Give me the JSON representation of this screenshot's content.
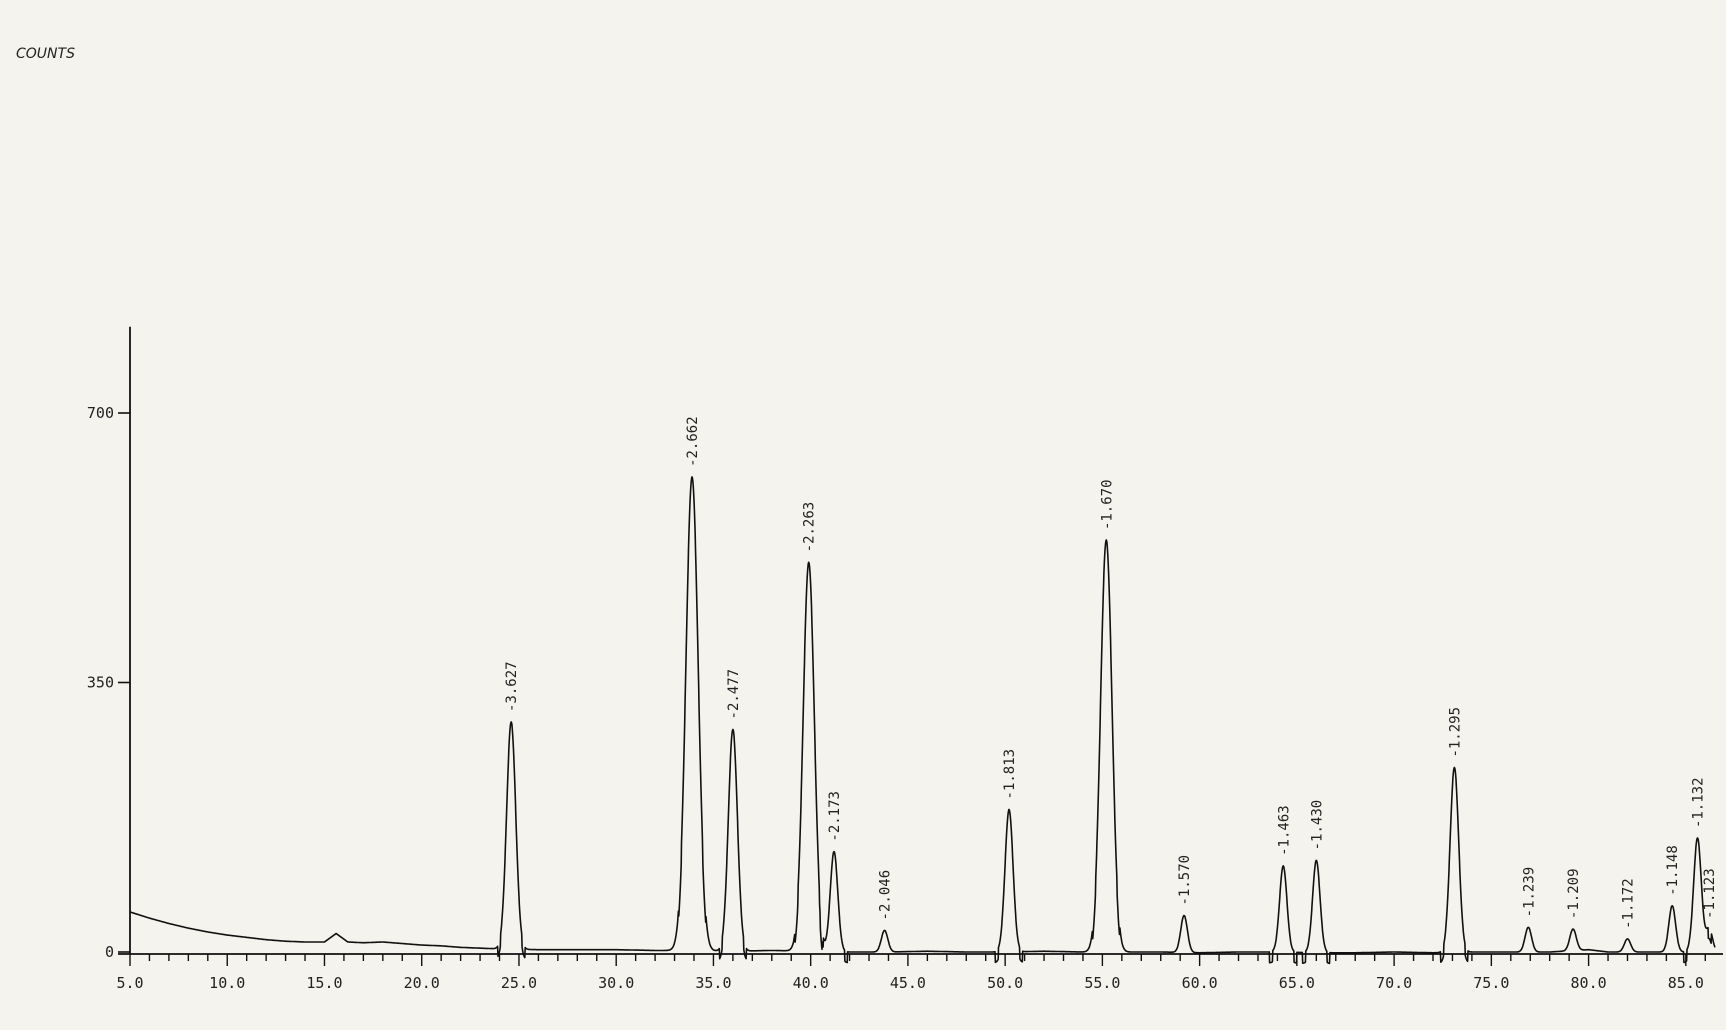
{
  "chart_data": {
    "type": "line",
    "ylabel": "COUNTS",
    "y_ticks": [
      {
        "value": 0,
        "label": "0"
      },
      {
        "value": 350,
        "label": "350"
      },
      {
        "value": 700,
        "label": "700"
      }
    ],
    "x_ticks": [
      {
        "value": 5,
        "label": "5.0"
      },
      {
        "value": 10,
        "label": "10.0"
      },
      {
        "value": 15,
        "label": "15.0"
      },
      {
        "value": 20,
        "label": "20.0"
      },
      {
        "value": 25,
        "label": "25.0"
      },
      {
        "value": 30,
        "label": "30.0"
      },
      {
        "value": 35,
        "label": "35.0"
      },
      {
        "value": 40,
        "label": "40.0"
      },
      {
        "value": 45,
        "label": "45.0"
      },
      {
        "value": 50,
        "label": "50.0"
      },
      {
        "value": 55,
        "label": "55.0"
      },
      {
        "value": 60,
        "label": "60.0"
      },
      {
        "value": 65,
        "label": "65.0"
      },
      {
        "value": 70,
        "label": "70.0"
      },
      {
        "value": 75,
        "label": "75.0"
      },
      {
        "value": 80,
        "label": "80.0"
      },
      {
        "value": 85,
        "label": "85.0"
      }
    ],
    "xlim": [
      5,
      86.5
    ],
    "ylim": [
      0,
      760
    ],
    "grid": false,
    "peaks": [
      {
        "x": 24.6,
        "height": 295,
        "label": "-3.627"
      },
      {
        "x": 33.9,
        "height": 615,
        "label": "-2.662"
      },
      {
        "x": 36.0,
        "height": 288,
        "label": "-2.477"
      },
      {
        "x": 39.9,
        "height": 505,
        "label": "-2.263"
      },
      {
        "x": 41.2,
        "height": 130,
        "label": "-2.173"
      },
      {
        "x": 43.8,
        "height": 28,
        "label": "-2.046"
      },
      {
        "x": 50.2,
        "height": 185,
        "label": "-1.813"
      },
      {
        "x": 55.2,
        "height": 535,
        "label": "-1.670"
      },
      {
        "x": 59.2,
        "height": 48,
        "label": "-1.570"
      },
      {
        "x": 64.3,
        "height": 112,
        "label": "-1.463"
      },
      {
        "x": 66.0,
        "height": 120,
        "label": "-1.430"
      },
      {
        "x": 73.1,
        "height": 240,
        "label": "-1.295"
      },
      {
        "x": 76.9,
        "height": 32,
        "label": "-1.239"
      },
      {
        "x": 79.2,
        "height": 28,
        "label": "-1.209"
      },
      {
        "x": 82.0,
        "height": 17,
        "label": "-1.172"
      },
      {
        "x": 84.3,
        "height": 60,
        "label": "-1.148"
      },
      {
        "x": 85.6,
        "height": 148,
        "label": "-1.132"
      },
      {
        "x": 86.2,
        "height": 30,
        "label": "-1.123"
      }
    ],
    "baseline": [
      [
        5.0,
        52
      ],
      [
        6.0,
        44
      ],
      [
        7.0,
        37
      ],
      [
        8.0,
        31
      ],
      [
        9.0,
        26
      ],
      [
        10.0,
        22
      ],
      [
        11.0,
        19
      ],
      [
        12.0,
        16
      ],
      [
        13.0,
        14
      ],
      [
        14.0,
        13
      ],
      [
        15.0,
        13
      ],
      [
        15.6,
        24
      ],
      [
        16.2,
        13
      ],
      [
        17.0,
        12
      ],
      [
        18.0,
        13
      ],
      [
        19.0,
        11
      ],
      [
        20.0,
        9
      ],
      [
        21.0,
        8
      ],
      [
        22.0,
        6
      ],
      [
        23.0,
        5
      ],
      [
        24.0,
        4
      ],
      [
        26.0,
        3
      ],
      [
        28.0,
        3
      ],
      [
        30.0,
        3
      ],
      [
        32.0,
        2
      ],
      [
        34.0,
        2
      ],
      [
        36.0,
        1
      ],
      [
        38.0,
        2
      ],
      [
        40.0,
        1
      ],
      [
        42.0,
        0
      ],
      [
        44.0,
        0
      ],
      [
        46.0,
        1
      ],
      [
        48.0,
        0
      ],
      [
        50.0,
        0
      ],
      [
        52.0,
        1
      ],
      [
        54.0,
        0
      ],
      [
        56.0,
        0
      ],
      [
        58.0,
        0
      ],
      [
        60.0,
        -1
      ],
      [
        62.0,
        0
      ],
      [
        64.0,
        0
      ],
      [
        66.0,
        -1
      ],
      [
        68.0,
        -1
      ],
      [
        70.0,
        0
      ],
      [
        72.0,
        -1
      ],
      [
        74.0,
        0
      ],
      [
        76.0,
        0
      ],
      [
        78.0,
        0
      ],
      [
        80.0,
        3
      ],
      [
        81.0,
        0
      ],
      [
        83.0,
        0
      ],
      [
        86.5,
        0
      ]
    ]
  }
}
